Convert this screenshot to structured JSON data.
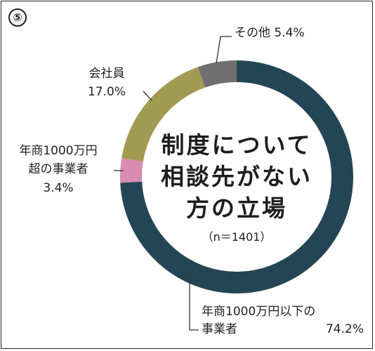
{
  "badge": "⑤",
  "chart_data": {
    "type": "pie",
    "variant": "donut",
    "center_title": [
      "制度について",
      "相談先がない",
      "方の立場"
    ],
    "center_note": "（n＝1401）",
    "slices": [
      {
        "label_lines": [
          "年商1000万円以下の",
          "事業者"
        ],
        "value_text": "74.2%",
        "value": 74.2,
        "color": "#244654"
      },
      {
        "label_lines": [
          "年商1000万円",
          "超の事業者"
        ],
        "value_text": "3.4%",
        "value": 3.4,
        "color": "#d98bb0"
      },
      {
        "label_lines": [
          "会社員"
        ],
        "value_text": "17.0%",
        "value": 17.0,
        "color": "#a39a52"
      },
      {
        "label_lines": [
          "その他"
        ],
        "value_text": "5.4%",
        "value": 5.4,
        "color": "#6f6f6f"
      }
    ]
  }
}
